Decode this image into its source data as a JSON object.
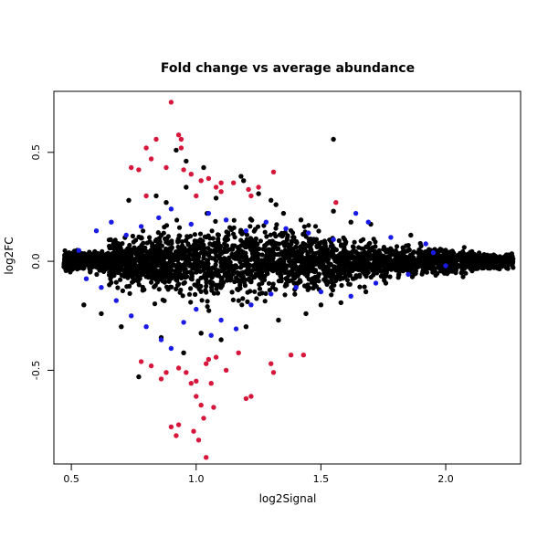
{
  "chart_data": {
    "type": "scatter",
    "title": "Fold change vs average abundance",
    "xlabel": "log2Signal",
    "ylabel": "log2FC",
    "xlim": [
      0.43,
      2.3
    ],
    "ylim": [
      -0.93,
      0.78
    ],
    "x_ticks": [
      0.5,
      1.0,
      1.5,
      2.0
    ],
    "x_tick_labels": [
      "0.5",
      "1.0",
      "1.5",
      "2.0"
    ],
    "y_ticks": [
      -0.5,
      0.0,
      0.5
    ],
    "y_tick_labels": [
      "-0.5",
      "0.0",
      "0.5"
    ],
    "grid": false,
    "legend": "none",
    "colors": {
      "all": "#000000",
      "significant": "#1a1ae6",
      "strong": "#d6163a"
    },
    "series": [
      {
        "color": "#000000",
        "points": [
          [
            0.92,
            0.51
          ],
          [
            0.96,
            0.46
          ],
          [
            1.03,
            0.43
          ],
          [
            1.18,
            0.39
          ],
          [
            1.19,
            0.37
          ],
          [
            1.25,
            0.31
          ],
          [
            1.3,
            0.28
          ],
          [
            1.55,
            0.56
          ],
          [
            1.55,
            0.23
          ],
          [
            1.32,
            0.26
          ],
          [
            0.84,
            0.3
          ],
          [
            0.88,
            0.27
          ],
          [
            0.73,
            0.28
          ],
          [
            0.96,
            0.34
          ],
          [
            1.08,
            0.29
          ],
          [
            1.35,
            0.22
          ],
          [
            1.42,
            0.19
          ],
          [
            1.62,
            0.18
          ],
          [
            1.7,
            0.17
          ],
          [
            1.86,
            0.12
          ],
          [
            0.77,
            -0.53
          ],
          [
            0.95,
            -0.42
          ],
          [
            1.1,
            -0.36
          ],
          [
            1.2,
            -0.3
          ],
          [
            1.33,
            -0.27
          ],
          [
            1.44,
            -0.24
          ],
          [
            1.5,
            -0.2
          ],
          [
            1.58,
            -0.19
          ],
          [
            1.68,
            -0.14
          ],
          [
            1.76,
            -0.1
          ],
          [
            0.86,
            -0.35
          ],
          [
            1.02,
            -0.33
          ],
          [
            0.7,
            -0.3
          ],
          [
            0.62,
            -0.24
          ],
          [
            0.55,
            -0.2
          ]
        ]
      },
      {
        "color": "#1a1ae6",
        "points": [
          [
            0.6,
            0.14
          ],
          [
            0.66,
            0.18
          ],
          [
            0.72,
            0.12
          ],
          [
            0.78,
            0.16
          ],
          [
            0.85,
            0.2
          ],
          [
            0.9,
            0.24
          ],
          [
            0.98,
            0.17
          ],
          [
            1.05,
            0.22
          ],
          [
            1.12,
            0.19
          ],
          [
            1.2,
            0.14
          ],
          [
            1.28,
            0.18
          ],
          [
            1.36,
            0.15
          ],
          [
            1.45,
            0.13
          ],
          [
            1.55,
            0.1
          ],
          [
            1.64,
            0.22
          ],
          [
            1.69,
            0.18
          ],
          [
            1.78,
            0.11
          ],
          [
            1.92,
            0.08
          ],
          [
            0.62,
            -0.12
          ],
          [
            0.68,
            -0.18
          ],
          [
            0.74,
            -0.25
          ],
          [
            0.8,
            -0.3
          ],
          [
            0.86,
            -0.36
          ],
          [
            0.9,
            -0.4
          ],
          [
            0.95,
            -0.28
          ],
          [
            1.0,
            -0.22
          ],
          [
            1.06,
            -0.34
          ],
          [
            1.1,
            -0.27
          ],
          [
            1.16,
            -0.31
          ],
          [
            1.22,
            -0.2
          ],
          [
            1.3,
            -0.15
          ],
          [
            1.4,
            -0.12
          ],
          [
            1.5,
            -0.14
          ],
          [
            1.62,
            -0.16
          ],
          [
            1.72,
            -0.1
          ],
          [
            1.85,
            -0.06
          ],
          [
            2.0,
            -0.02
          ],
          [
            1.95,
            0.04
          ],
          [
            0.53,
            0.05
          ],
          [
            0.56,
            -0.08
          ]
        ]
      },
      {
        "color": "#d6163a",
        "points": [
          [
            0.9,
            0.73
          ],
          [
            0.93,
            0.58
          ],
          [
            0.94,
            0.56
          ],
          [
            0.94,
            0.52
          ],
          [
            0.84,
            0.56
          ],
          [
            0.8,
            0.52
          ],
          [
            0.82,
            0.47
          ],
          [
            0.74,
            0.43
          ],
          [
            0.77,
            0.42
          ],
          [
            0.88,
            0.43
          ],
          [
            0.95,
            0.42
          ],
          [
            0.98,
            0.4
          ],
          [
            1.02,
            0.37
          ],
          [
            1.05,
            0.38
          ],
          [
            1.1,
            0.36
          ],
          [
            1.15,
            0.36
          ],
          [
            1.25,
            0.34
          ],
          [
            1.31,
            0.41
          ],
          [
            1.22,
            0.3
          ],
          [
            1.0,
            0.3
          ],
          [
            1.1,
            0.32
          ],
          [
            0.8,
            0.3
          ],
          [
            1.56,
            0.27
          ],
          [
            1.21,
            0.33
          ],
          [
            1.08,
            0.34
          ],
          [
            0.78,
            -0.46
          ],
          [
            0.82,
            -0.48
          ],
          [
            0.88,
            -0.51
          ],
          [
            0.93,
            -0.49
          ],
          [
            0.96,
            -0.51
          ],
          [
            1.0,
            -0.55
          ],
          [
            1.04,
            -0.47
          ],
          [
            1.08,
            -0.44
          ],
          [
            1.17,
            -0.42
          ],
          [
            1.3,
            -0.47
          ],
          [
            1.38,
            -0.43
          ],
          [
            1.43,
            -0.43
          ],
          [
            1.31,
            -0.51
          ],
          [
            0.86,
            -0.54
          ],
          [
            0.98,
            -0.56
          ],
          [
            1.0,
            -0.62
          ],
          [
            1.02,
            -0.66
          ],
          [
            1.03,
            -0.72
          ],
          [
            0.93,
            -0.75
          ],
          [
            0.99,
            -0.78
          ],
          [
            1.07,
            -0.67
          ],
          [
            1.01,
            -0.82
          ],
          [
            1.04,
            -0.9
          ],
          [
            0.9,
            -0.76
          ],
          [
            1.2,
            -0.63
          ],
          [
            1.22,
            -0.62
          ],
          [
            0.92,
            -0.8
          ],
          [
            1.05,
            -0.45
          ],
          [
            1.06,
            -0.56
          ],
          [
            1.12,
            -0.5
          ]
        ]
      }
    ],
    "dense_band": {
      "x": [
        0.47,
        2.27
      ],
      "center": 0.0,
      "spread": [
        0.05,
        0.12,
        0.16,
        0.19,
        0.17,
        0.14,
        0.11,
        0.08,
        0.06,
        0.04
      ]
    }
  }
}
